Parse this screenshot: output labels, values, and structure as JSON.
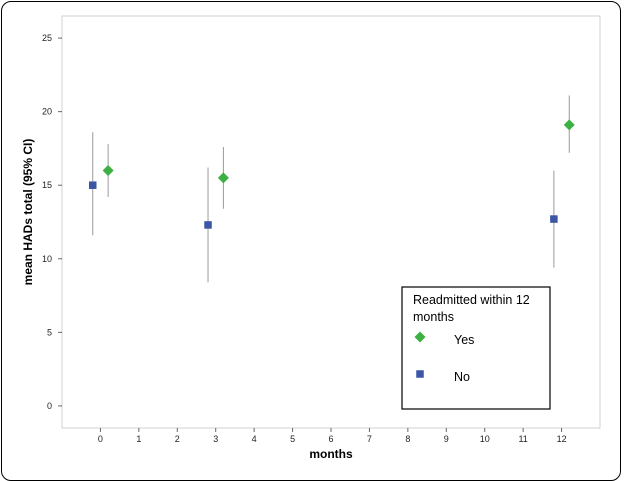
{
  "chart_data": {
    "type": "scatter",
    "xlabel": "months",
    "ylabel": "mean HADs total (95% CI)",
    "xlim": [
      -1,
      13
    ],
    "ylim": [
      -1.5,
      26.5
    ],
    "x_ticks": [
      0,
      1,
      2,
      3,
      4,
      5,
      6,
      7,
      8,
      9,
      10,
      11,
      12
    ],
    "y_ticks": [
      0,
      5,
      10,
      15,
      20,
      25
    ],
    "grid": false,
    "legend": {
      "title": "Readmitted within 12 months",
      "position": "bottom-right"
    },
    "series": [
      {
        "name": "Yes",
        "marker": "diamond",
        "color": "#3cb043",
        "points": [
          {
            "x": 0.2,
            "y": 16.0,
            "lower": 14.2,
            "upper": 17.8
          },
          {
            "x": 3.2,
            "y": 15.5,
            "lower": 13.4,
            "upper": 17.6
          },
          {
            "x": 12.2,
            "y": 19.1,
            "lower": 17.2,
            "upper": 21.1
          }
        ]
      },
      {
        "name": "No",
        "marker": "square",
        "color": "#3a56a5",
        "points": [
          {
            "x": -0.2,
            "y": 15.0,
            "lower": 11.6,
            "upper": 18.6
          },
          {
            "x": 2.8,
            "y": 12.3,
            "lower": 8.4,
            "upper": 16.2
          },
          {
            "x": 11.8,
            "y": 12.7,
            "lower": 9.4,
            "upper": 16.0
          }
        ]
      }
    ]
  }
}
